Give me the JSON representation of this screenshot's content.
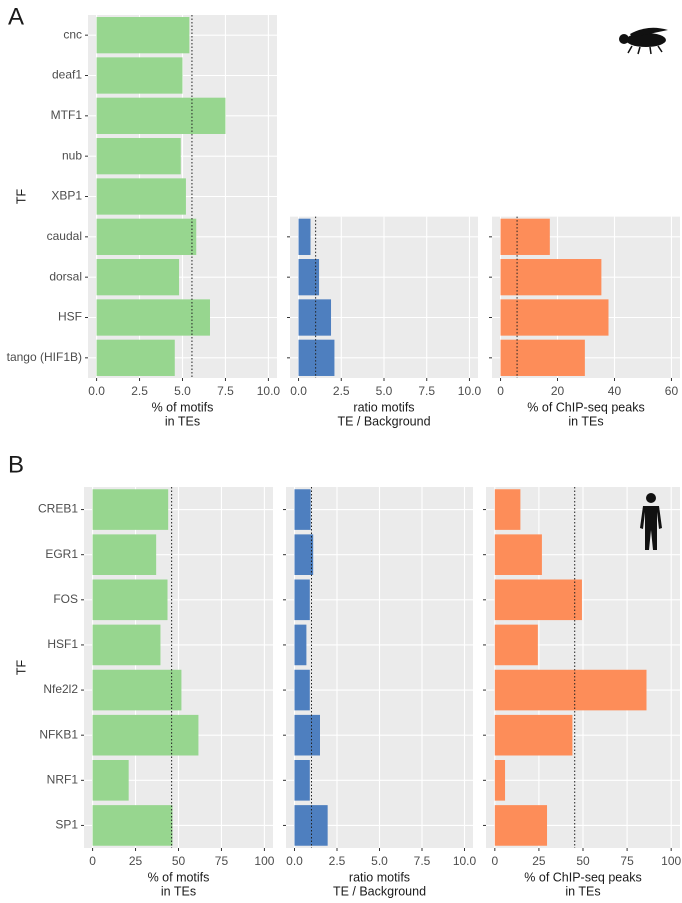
{
  "chart_data": [
    {
      "type": "bar",
      "orientation": "horizontal",
      "panel_label": "A",
      "y_label": "TF",
      "categories": [
        "cnc",
        "deaf1",
        "MTF1",
        "nub",
        "XBP1",
        "caudal",
        "dorsal",
        "HSF",
        "tango (HIF1B)"
      ],
      "series": [
        {
          "x_label": [
            "% of motifs",
            "in TEs"
          ],
          "color": "#97d68f",
          "values": [
            5.4,
            5.0,
            7.5,
            4.9,
            5.2,
            5.8,
            4.8,
            6.6,
            4.55
          ],
          "xlim": [
            -0.5,
            10.5
          ],
          "xticks": [
            {
              "value": 0,
              "label": "0.0"
            },
            2.5,
            {
              "value": 5,
              "label": "5.0"
            },
            7.5,
            {
              "value": 10,
              "label": "10.0"
            }
          ],
          "reference_line": 5.55
        },
        {
          "x_label": [
            "ratio motifs",
            "TE / Background"
          ],
          "color": "#4e7fbf",
          "values": [
            null,
            null,
            null,
            null,
            null,
            0.7,
            1.2,
            1.9,
            2.1
          ],
          "xlim": [
            -0.5,
            10.5
          ],
          "xticks": [
            {
              "value": 0,
              "label": "0.0"
            },
            2.5,
            {
              "value": 5,
              "label": "5.0"
            },
            7.5,
            {
              "value": 10,
              "label": "10.0"
            }
          ],
          "reference_line": 1.0
        },
        {
          "x_label": [
            "% of ChIP-seq peaks",
            "in TEs"
          ],
          "color": "#fd8d59",
          "values": [
            null,
            null,
            null,
            null,
            null,
            17.3,
            35.4,
            37.9,
            29.6
          ],
          "xlim": [
            -3,
            63
          ],
          "xticks": [
            0,
            20,
            40,
            60
          ],
          "reference_line": 5.8
        }
      ]
    },
    {
      "type": "bar",
      "orientation": "horizontal",
      "panel_label": "B",
      "y_label": "TF",
      "categories": [
        "CREB1",
        "EGR1",
        "FOS",
        "HSF1",
        "Nfe2l2",
        "NFKB1",
        "NRF1",
        "SP1"
      ],
      "series": [
        {
          "x_label": [
            "% of motifs",
            "in TEs"
          ],
          "color": "#97d68f",
          "values": [
            44,
            37,
            43.6,
            39.5,
            51.7,
            61.6,
            21,
            46.5
          ],
          "xlim": [
            -5,
            105
          ],
          "xticks": [
            0,
            25,
            50,
            75,
            100
          ],
          "reference_line": 46
        },
        {
          "x_label": [
            "ratio motifs",
            "TE / Background"
          ],
          "color": "#4e7fbf",
          "values": [
            0.95,
            1.1,
            0.9,
            0.7,
            0.9,
            1.5,
            0.9,
            1.95
          ],
          "xlim": [
            -0.5,
            10.5
          ],
          "xticks": [
            {
              "value": 0,
              "label": "0.0"
            },
            2.5,
            {
              "value": 5,
              "label": "5.0"
            },
            7.5,
            {
              "value": 10,
              "label": "10.0"
            }
          ],
          "reference_line": 1.0
        },
        {
          "x_label": [
            "% of ChIP-seq peaks",
            "in TEs"
          ],
          "color": "#fd8d59",
          "values": [
            14.5,
            26.7,
            49.4,
            24.4,
            86,
            44,
            5.8,
            29.6
          ],
          "xlim": [
            -5,
            105
          ],
          "xticks": [
            0,
            25,
            50,
            75,
            100
          ],
          "reference_line": 45.3
        }
      ]
    }
  ]
}
